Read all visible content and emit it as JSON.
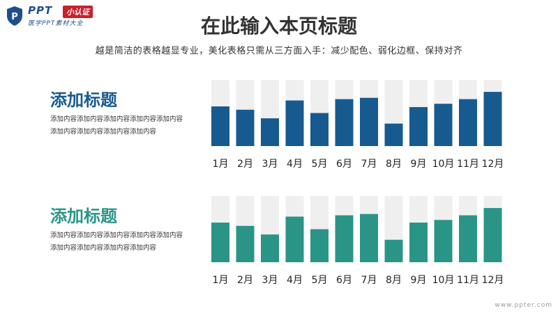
{
  "logo": {
    "brand": "PPT",
    "badge": "小认证",
    "sub": "医学PPT素材大全",
    "shield_color": "#1f4e8c",
    "badge_color": "#c8212a"
  },
  "header": {
    "title": "在此输入本页标题",
    "subtitle": "越是简洁的表格越显专业，美化表格只需从三方面入手：减少配色、弱化边框、保持对齐"
  },
  "sections": [
    {
      "heading": "添加标题",
      "color": "#175a8f",
      "lines": [
        "添加内容添加内容添加内容添加内容添加内容",
        "添加内容添加内容添加内容添加内容"
      ]
    },
    {
      "heading": "添加标题",
      "color": "#2a9587",
      "lines": [
        "添加内容添加内容添加内容添加内容添加内容",
        "添加内容添加内容添加内容添加内容"
      ]
    }
  ],
  "watermark": "www.ppter.com",
  "chart_data": [
    {
      "type": "bar",
      "categories": [
        "1月",
        "2月",
        "3月",
        "4月",
        "5月",
        "6月",
        "7月",
        "8月",
        "9月",
        "10月",
        "11月",
        "12月"
      ],
      "values": [
        60,
        55,
        42,
        69,
        50,
        71,
        73,
        34,
        59,
        64,
        71,
        82
      ],
      "ylim": [
        0,
        100
      ],
      "bar_color": "#175a8f",
      "background_bar_color": "#efefef"
    },
    {
      "type": "bar",
      "categories": [
        "1月",
        "2月",
        "3月",
        "4月",
        "5月",
        "6月",
        "7月",
        "8月",
        "9月",
        "10月",
        "11月",
        "12月"
      ],
      "values": [
        60,
        55,
        42,
        69,
        50,
        71,
        73,
        34,
        60,
        64,
        71,
        82
      ],
      "ylim": [
        0,
        100
      ],
      "bar_color": "#2a9587",
      "background_bar_color": "#efefef"
    }
  ]
}
